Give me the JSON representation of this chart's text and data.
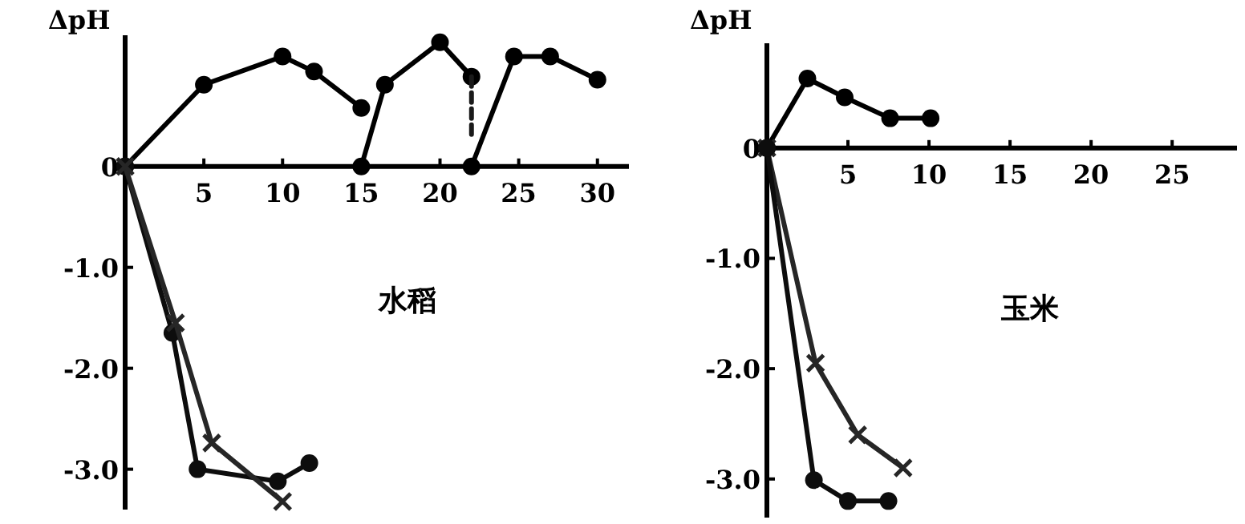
{
  "chart_data": [
    {
      "type": "line",
      "ylabel": "ΔpH",
      "annotations": [
        "水稻"
      ],
      "xlim": [
        0,
        32
      ],
      "ylim": [
        -3.4,
        1.3
      ],
      "xticks": [
        5,
        10,
        15,
        20,
        25,
        30
      ],
      "yticks": [
        {
          "value": 0,
          "label": "0"
        },
        {
          "value": -1,
          "label": "-1.0"
        },
        {
          "value": -2,
          "label": "-2.0"
        },
        {
          "value": -3,
          "label": "-3.0"
        }
      ],
      "series": [
        {
          "color": "#000000",
          "marker": "circle",
          "x": [
            0,
            5,
            10,
            12,
            15,
            null,
            15,
            16.5,
            20,
            22,
            null,
            22,
            24.7,
            27,
            30
          ],
          "values": [
            0,
            0.81,
            1.09,
            0.94,
            0.58,
            null,
            0,
            0.81,
            1.23,
            0.89,
            null,
            0,
            1.09,
            1.09,
            0.86
          ]
        },
        {
          "color": "#1a1a1a",
          "marker": "none",
          "line_style": "dashed",
          "x": [
            22,
            22
          ],
          "values": [
            0.89,
            0.3
          ]
        },
        {
          "color": "#0d0d0d",
          "marker": "circle",
          "x": [
            0,
            3,
            4.6,
            9.7,
            11.7
          ],
          "values": [
            0,
            -1.65,
            -3.0,
            -3.12,
            -2.94
          ]
        },
        {
          "color": "#262626",
          "marker": "cross",
          "x": [
            0,
            3.2,
            5.5,
            10
          ],
          "values": [
            0,
            -1.55,
            -2.74,
            -3.32
          ]
        }
      ]
    },
    {
      "type": "line",
      "ylabel": "ΔpH",
      "annotations": [
        "玉米"
      ],
      "xlim": [
        0,
        29
      ],
      "ylim": [
        -3.35,
        0.95
      ],
      "xticks": [
        5,
        10,
        15,
        20,
        25
      ],
      "yticks": [
        {
          "value": 0,
          "label": "0"
        },
        {
          "value": -1,
          "label": "-1.0"
        },
        {
          "value": -2,
          "label": "-2.0"
        },
        {
          "value": -3,
          "label": "-3.0"
        }
      ],
      "series": [
        {
          "color": "#000000",
          "marker": "circle",
          "x": [
            0,
            2.5,
            4.8,
            7.6,
            10.1
          ],
          "values": [
            0,
            0.63,
            0.46,
            0.27,
            0.27
          ]
        },
        {
          "color": "#262626",
          "marker": "cross",
          "x": [
            0,
            3,
            5.6,
            8.4
          ],
          "values": [
            0,
            -1.95,
            -2.6,
            -2.9
          ]
        },
        {
          "color": "#0d0d0d",
          "marker": "circle",
          "x": [
            0,
            2.9,
            5,
            7.5
          ],
          "values": [
            0,
            -3.01,
            -3.2,
            -3.2
          ]
        }
      ]
    }
  ]
}
